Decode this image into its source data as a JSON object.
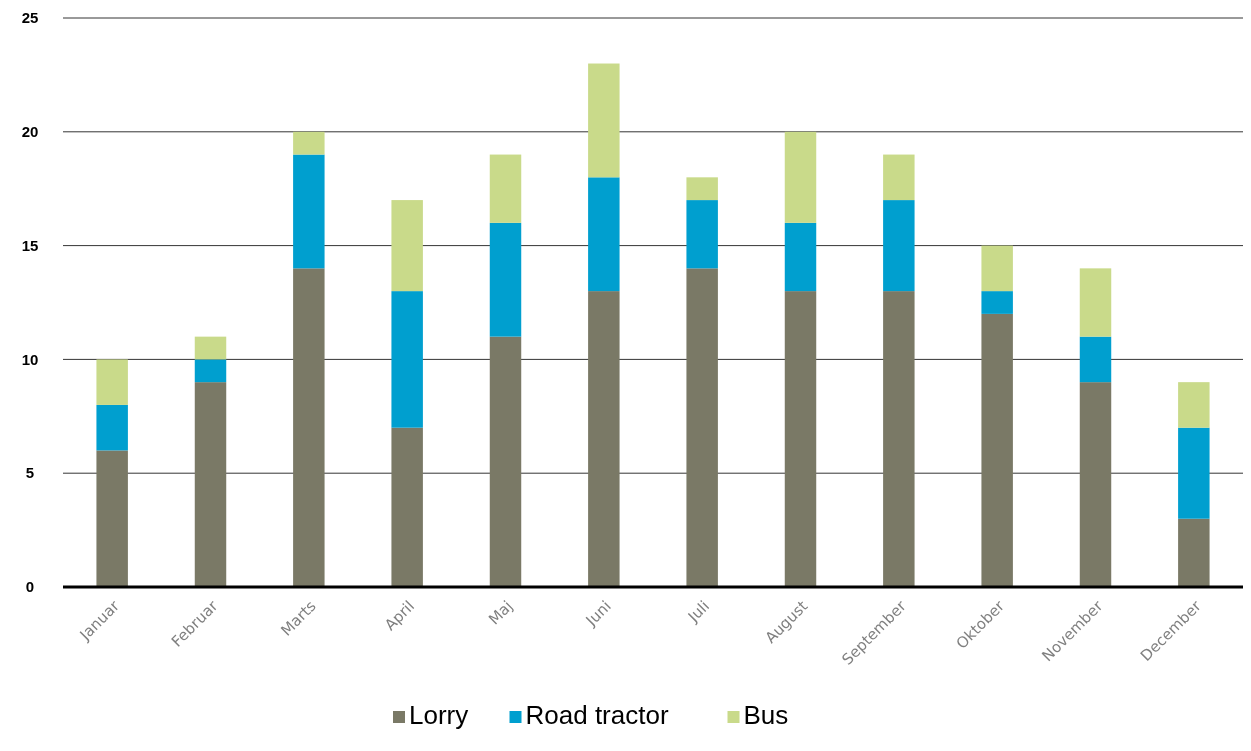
{
  "chart_data": {
    "type": "bar",
    "stacked": true,
    "categories": [
      "Januar",
      "Februar",
      "Marts",
      "April",
      "Maj",
      "Juni",
      "Juli",
      "August",
      "September",
      "Oktober",
      "November",
      "December"
    ],
    "series": [
      {
        "name": "Lorry",
        "color": "#7a7966",
        "values": [
          6,
          9,
          14,
          7,
          11,
          13,
          14,
          13,
          13,
          12,
          9,
          3
        ]
      },
      {
        "name": "Road tractor",
        "color": "#009fcf",
        "values": [
          2,
          1,
          5,
          6,
          5,
          5,
          3,
          3,
          4,
          1,
          2,
          4
        ]
      },
      {
        "name": "Bus",
        "color": "#c9da8a",
        "values": [
          2,
          1,
          1,
          4,
          3,
          5,
          1,
          4,
          2,
          2,
          3,
          2
        ]
      }
    ],
    "ylim": [
      0,
      25
    ],
    "yticks": [
      0,
      5,
      10,
      15,
      20,
      25
    ],
    "grid": "y",
    "legend": "bottom"
  }
}
